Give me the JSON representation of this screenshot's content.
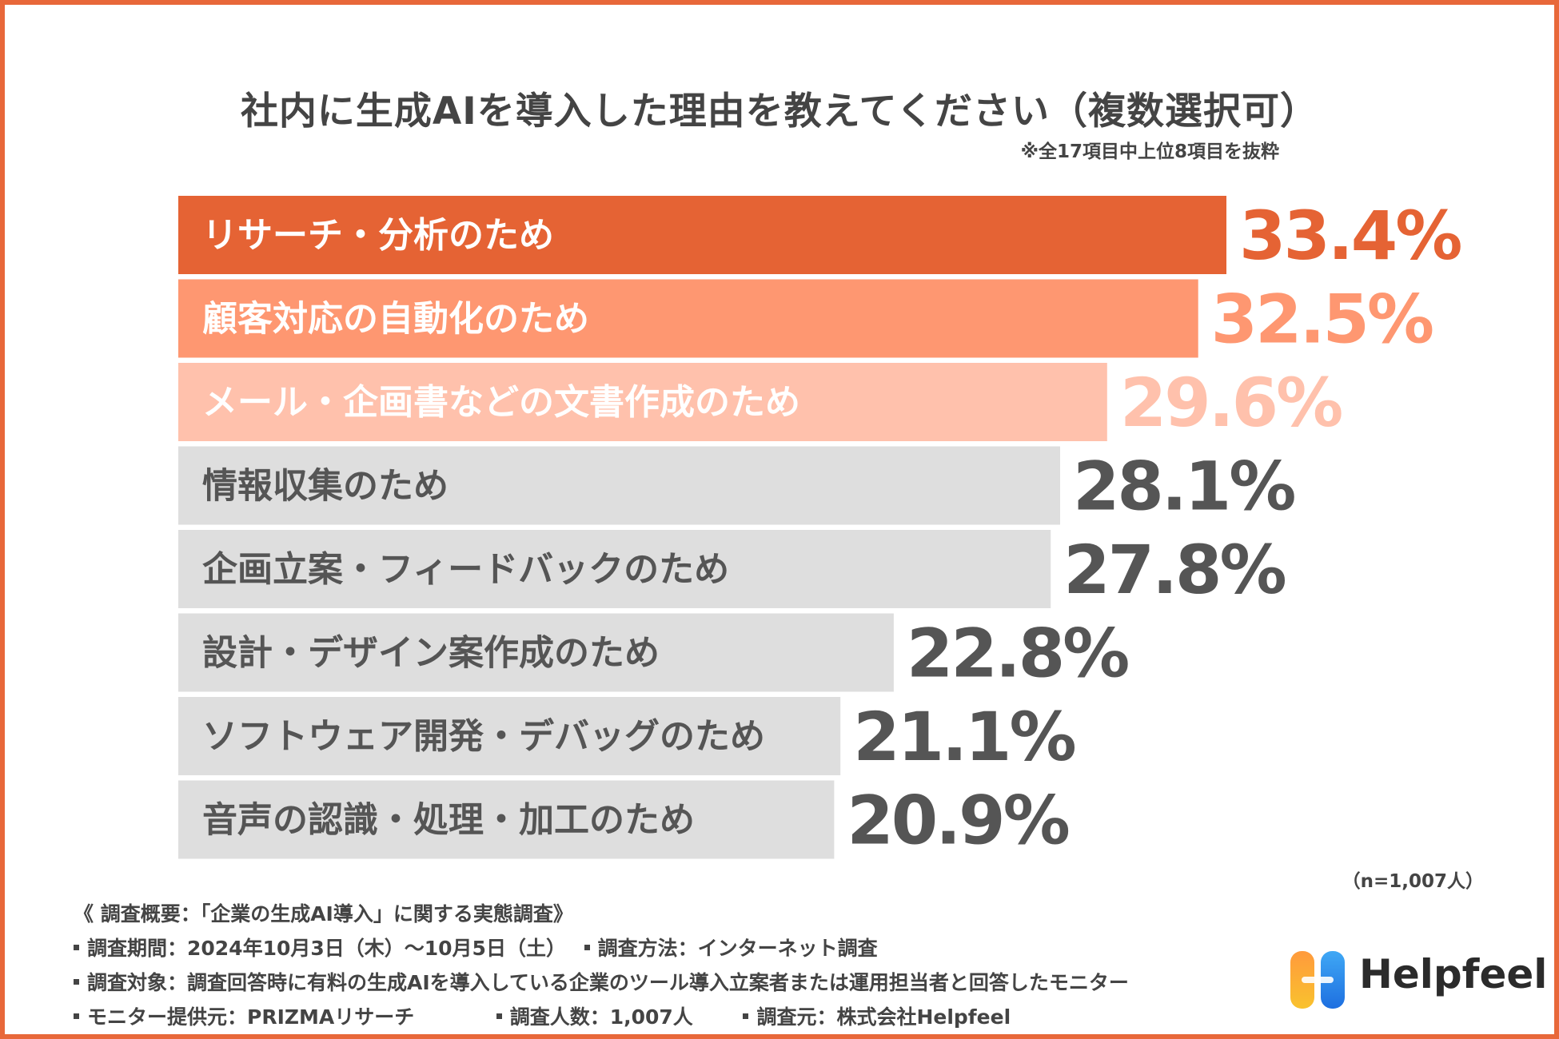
{
  "title": "社内に生成AIを導入した理由を教えてください（複数選択可）",
  "subtitle": "※全17項目中上位8項目を抜粋",
  "chart_data": {
    "type": "bar",
    "orientation": "horizontal",
    "title": "社内に生成AIを導入した理由を教えてください（複数選択可）",
    "categories": [
      "リサーチ・分析のため",
      "顧客対応の自動化のため",
      "メール・企画書などの文書作成のため",
      "情報収集のため",
      "企画立案・フィードバックのため",
      "設計・デザイン案作成のため",
      "ソフトウェア開発・デバッグのため",
      "音声の認識・処理・加工のため"
    ],
    "values": [
      33.4,
      32.5,
      29.6,
      28.1,
      27.8,
      22.8,
      21.1,
      20.9
    ],
    "value_labels": [
      "33.4%",
      "32.5%",
      "29.6%",
      "28.1%",
      "27.8%",
      "22.8%",
      "21.1%",
      "20.9%"
    ],
    "unit": "%",
    "xlim": [
      0,
      33.4
    ],
    "bar_colors": [
      "#e56334",
      "#fe9771",
      "#ffc1ac",
      "#dedede",
      "#dedede",
      "#dedede",
      "#dedede",
      "#dedede"
    ],
    "label_colors": [
      "#ffffff",
      "#ffffff",
      "#ffffff",
      "#555555",
      "#555555",
      "#555555",
      "#555555",
      "#555555"
    ],
    "value_colors": [
      "#e56334",
      "#fe9771",
      "#ffc1ac",
      "#555555",
      "#555555",
      "#555555",
      "#555555",
      "#555555"
    ]
  },
  "sample_note": "（n=1,007人）",
  "footer": {
    "heading": "《 調査概要：「企業の生成AI導入」に関する実態調査》",
    "period": "調査期間：2024年10月3日（木）〜10月5日（土）",
    "method": "調査方法：インターネット調査",
    "target": "調査対象：調査回答時に有料の生成AIを導入している企業のツール導入立案者または運用担当者と回答したモニター",
    "provider": "モニター提供元：PRIZMAリサーチ",
    "count": "調査人数：1,007人",
    "source": "調査元：株式会社Helpfeel"
  },
  "logo": {
    "text": "Helpfeel"
  }
}
